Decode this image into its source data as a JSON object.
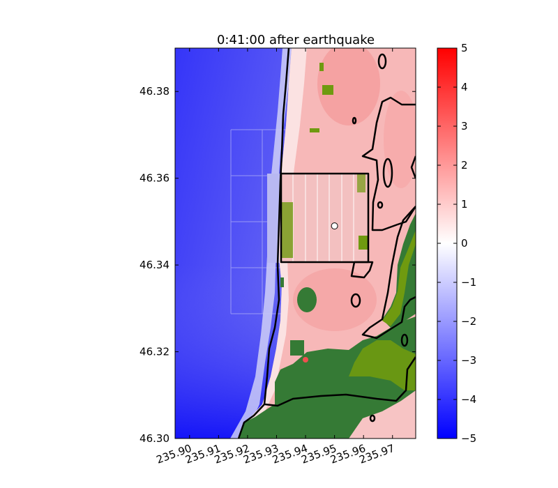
{
  "chart_data": {
    "type": "heatmap",
    "title": "0:41:00 after earthquake",
    "xlabel": "",
    "ylabel": "",
    "xlim": [
      235.895,
      235.978
    ],
    "ylim": [
      46.3,
      46.39
    ],
    "x_ticks": [
      235.9,
      235.91,
      235.92,
      235.93,
      235.94,
      235.95,
      235.96,
      235.97
    ],
    "x_tick_labels": [
      "235.90",
      "235.91",
      "235.92",
      "235.93",
      "235.94",
      "235.95",
      "235.96",
      "235.97"
    ],
    "y_ticks": [
      46.3,
      46.32,
      46.34,
      46.36,
      46.38
    ],
    "y_tick_labels": [
      "46.30",
      "46.32",
      "46.34",
      "46.36",
      "46.38"
    ],
    "colorbar": {
      "min": -5,
      "max": 5,
      "ticks": [
        5,
        4,
        3,
        2,
        1,
        0,
        -1,
        -2,
        -3,
        -4,
        -5
      ],
      "tick_labels": [
        "5",
        "4",
        "3",
        "2",
        "1",
        "0",
        "−1",
        "−2",
        "−3",
        "−4",
        "−5"
      ],
      "colors": {
        "low": "#0000ff",
        "mid": "#ffffff",
        "high": "#ff0000"
      }
    },
    "colors": {
      "ocean_deep": "#1010f5",
      "ocean_shallow": "#8a8af2",
      "land_flooded": "#f6b3b3",
      "land_dry": "#357a35",
      "land_light": "#6f9a10",
      "contour": "#000000"
    },
    "marker": {
      "lon": 235.95,
      "lat": 46.349
    }
  }
}
